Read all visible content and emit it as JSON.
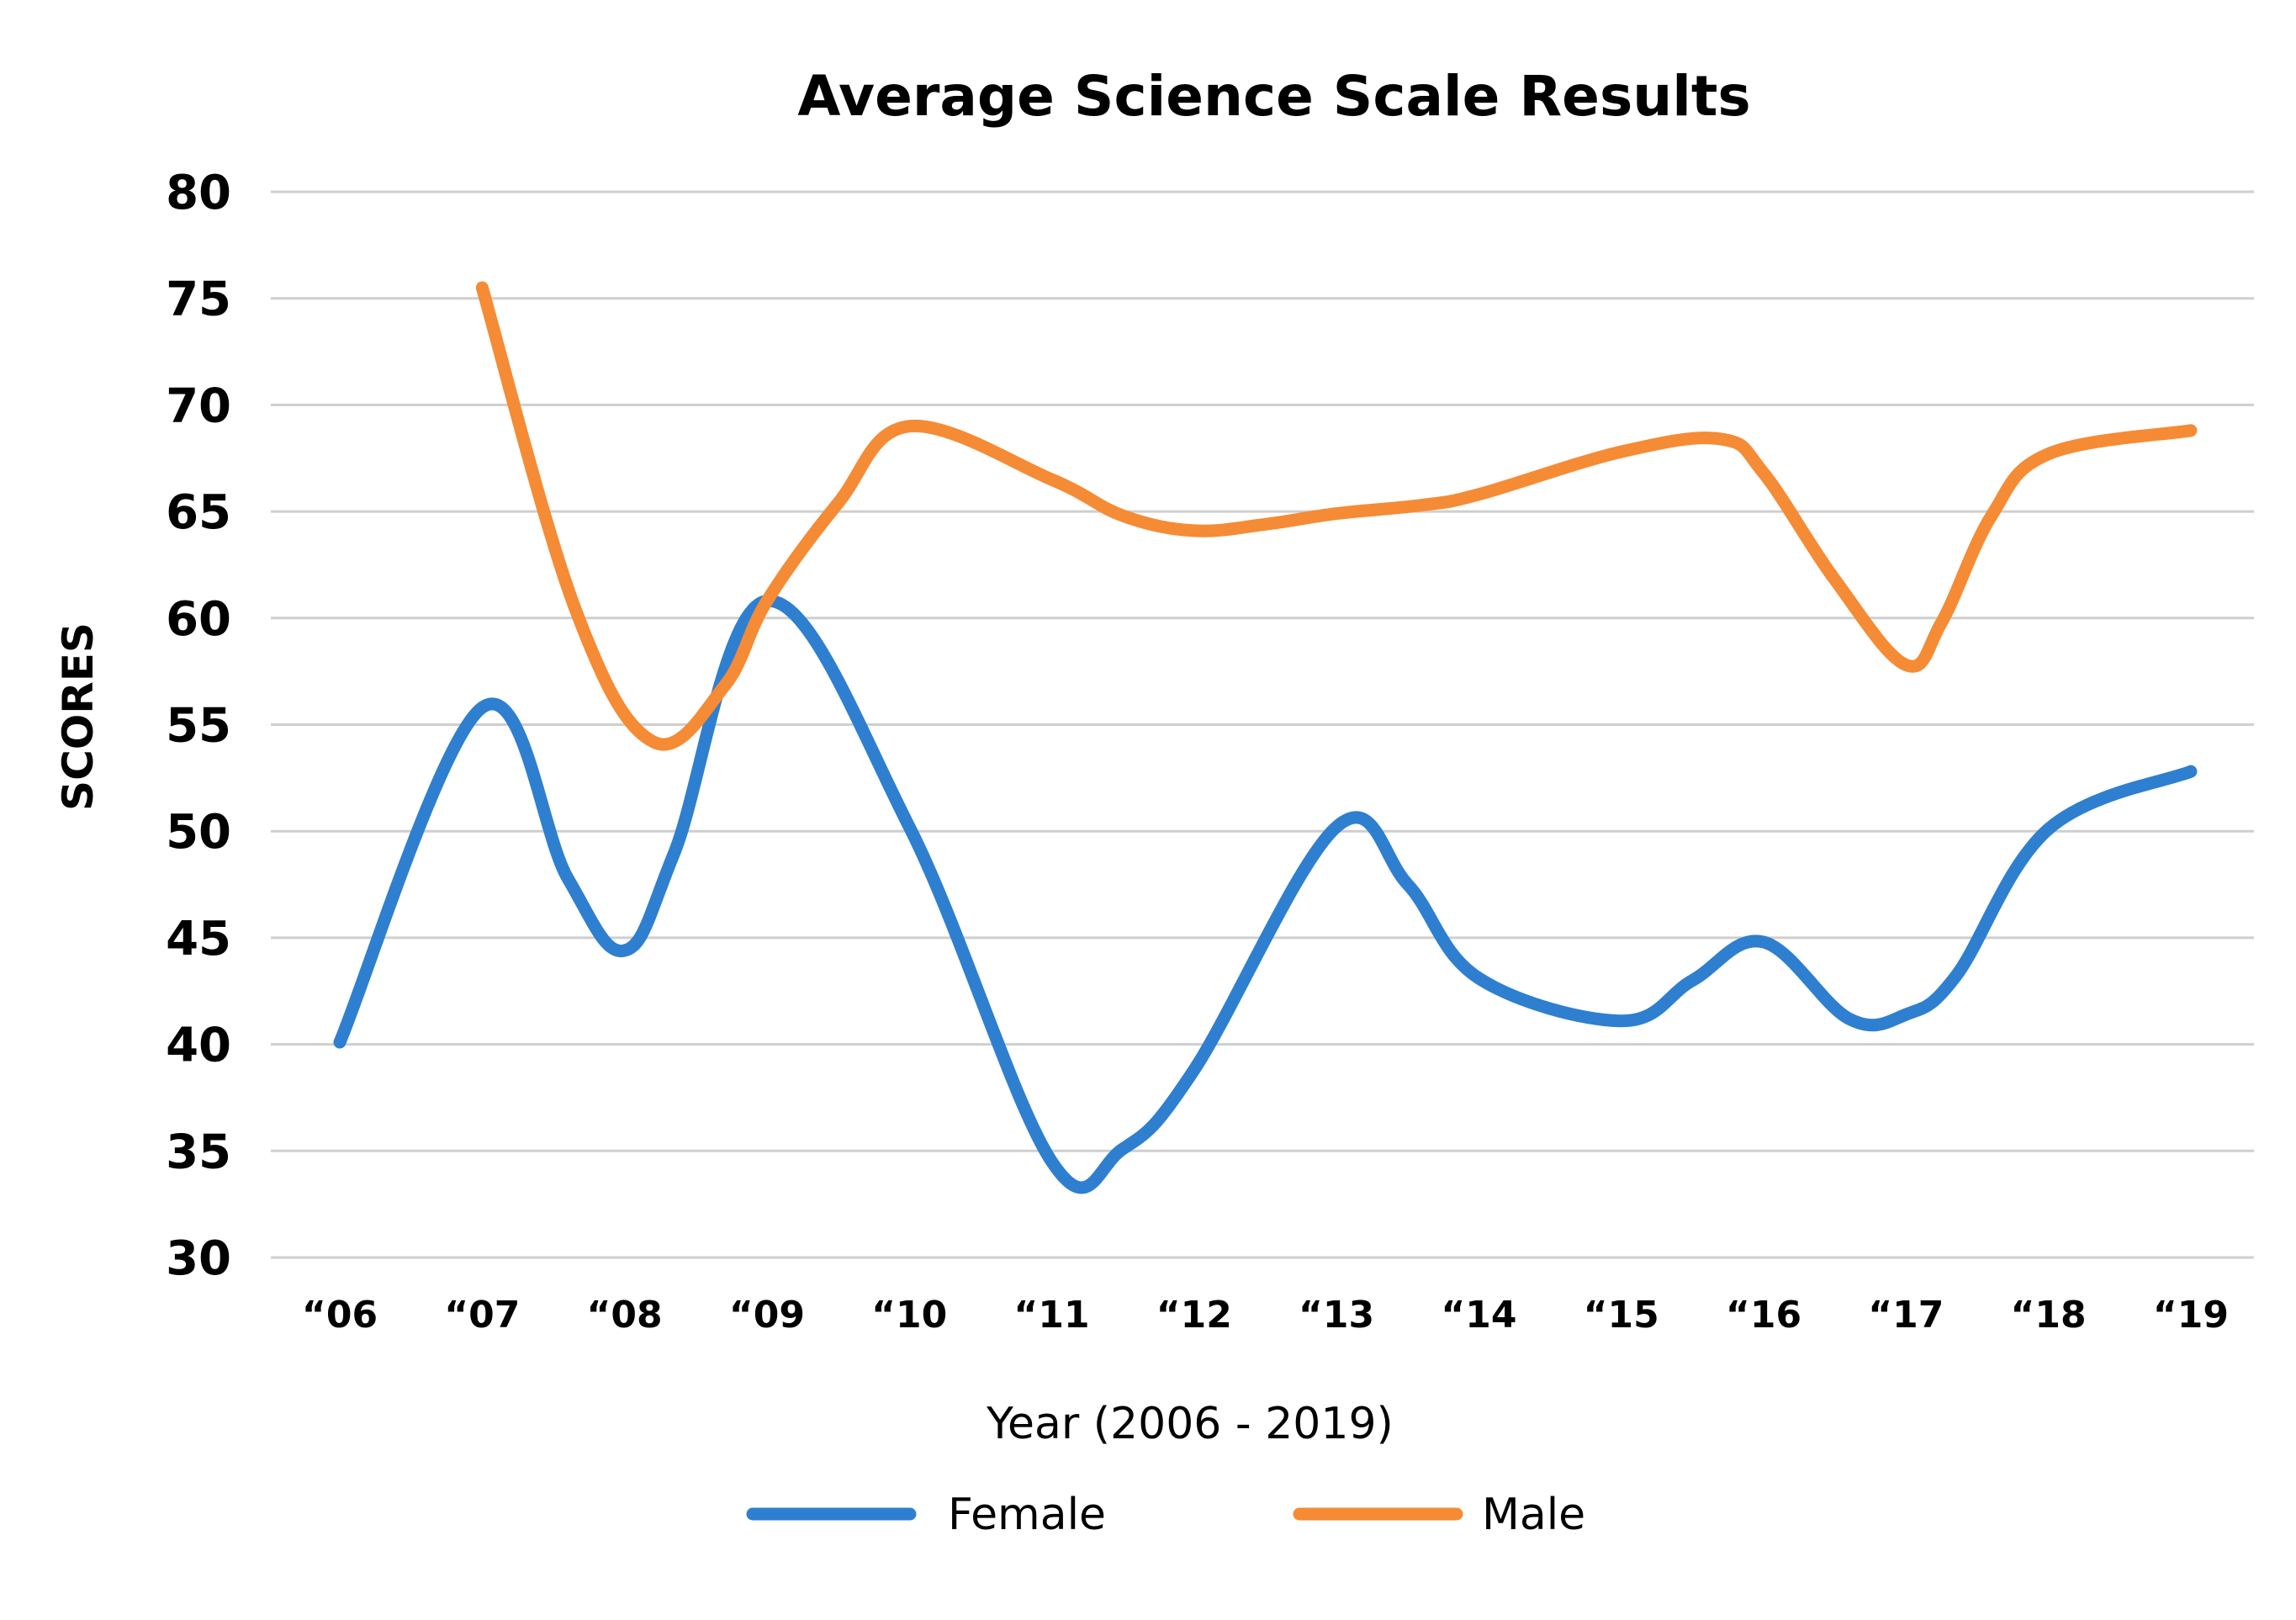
{
  "chart_data": {
    "type": "line",
    "title": "Average Science Scale Results",
    "xlabel": "Year (2006 - 2019)",
    "ylabel": "SCORES",
    "categories": [
      "“06",
      "“07",
      "“08",
      "“09",
      "“10",
      "“11",
      "“12",
      "“13",
      "“14",
      "“15",
      "“16",
      "“17",
      "“18",
      "“19"
    ],
    "ylim": [
      30,
      80
    ],
    "yticks": [
      30,
      35,
      40,
      45,
      50,
      55,
      60,
      65,
      70,
      75,
      80
    ],
    "grid": true,
    "legend_position": "bottom",
    "series": [
      {
        "name": "Female",
        "color": "#2E7FD0",
        "points": [
          [
            0,
            40.1
          ],
          [
            1,
            55.8
          ],
          [
            1.6,
            47.8
          ],
          [
            2,
            44.4
          ],
          [
            2.35,
            49.0
          ],
          [
            3,
            60.8
          ],
          [
            4,
            50.2
          ],
          [
            5,
            34.5
          ],
          [
            5.5,
            35.1
          ],
          [
            6,
            38.8
          ],
          [
            7,
            50.2
          ],
          [
            7.5,
            47.5
          ],
          [
            8,
            43.1
          ],
          [
            9,
            41.1
          ],
          [
            9.5,
            43.0
          ],
          [
            10,
            44.8
          ],
          [
            10.6,
            41.2
          ],
          [
            11,
            41.4
          ],
          [
            11.35,
            43.2
          ],
          [
            12,
            50.1
          ],
          [
            13,
            52.8
          ]
        ]
      },
      {
        "name": "Male",
        "color": "#F58B35",
        "points": [
          [
            1,
            75.5
          ],
          [
            1.65,
            60.5
          ],
          [
            2.2,
            54.2
          ],
          [
            2.7,
            56.8
          ],
          [
            3,
            60.8
          ],
          [
            3.5,
            65.4
          ],
          [
            4,
            69.0
          ],
          [
            5,
            66.5
          ],
          [
            5.5,
            64.8
          ],
          [
            6,
            64.1
          ],
          [
            6.5,
            64.4
          ],
          [
            7,
            64.9
          ],
          [
            7.6,
            65.3
          ],
          [
            8,
            65.8
          ],
          [
            9,
            67.8
          ],
          [
            9.7,
            68.4
          ],
          [
            10,
            66.8
          ],
          [
            10.5,
            61.8
          ],
          [
            11,
            57.8
          ],
          [
            11.25,
            59.8
          ],
          [
            11.6,
            64.8
          ],
          [
            12,
            67.7
          ],
          [
            13,
            68.8
          ]
        ]
      }
    ]
  }
}
